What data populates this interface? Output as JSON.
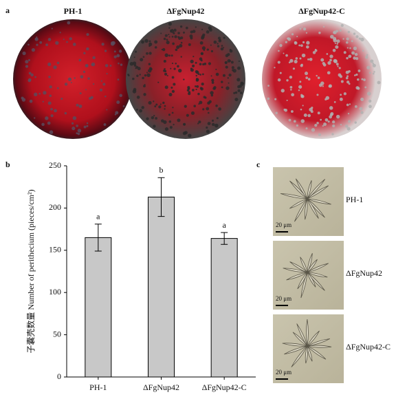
{
  "panel_a": {
    "label": "a",
    "plates": [
      "PH-1",
      "ΔFgNup42",
      "ΔFgNup42-C"
    ]
  },
  "panel_b": {
    "label": "b"
  },
  "panel_c": {
    "label": "c",
    "images": [
      {
        "label": "PH-1",
        "scale": "20 μm"
      },
      {
        "label": "ΔFgNup42",
        "scale": "20 μm"
      },
      {
        "label": "ΔFgNup42-C",
        "scale": "20 μm"
      }
    ]
  },
  "chart_data": {
    "type": "bar",
    "y_label": "子囊壳数量 Number of perithecium (pieces/cm²)",
    "categories": [
      "PH-1",
      "ΔFgNup42",
      "ΔFgNup42-C"
    ],
    "values": [
      165,
      213,
      164
    ],
    "errors": [
      16,
      23,
      7
    ],
    "annotations": [
      "a",
      "b",
      "a"
    ],
    "color": "#c8c8c8",
    "ylim": [
      0,
      250
    ],
    "yticks": [
      0,
      50,
      100,
      150,
      200,
      250
    ]
  }
}
